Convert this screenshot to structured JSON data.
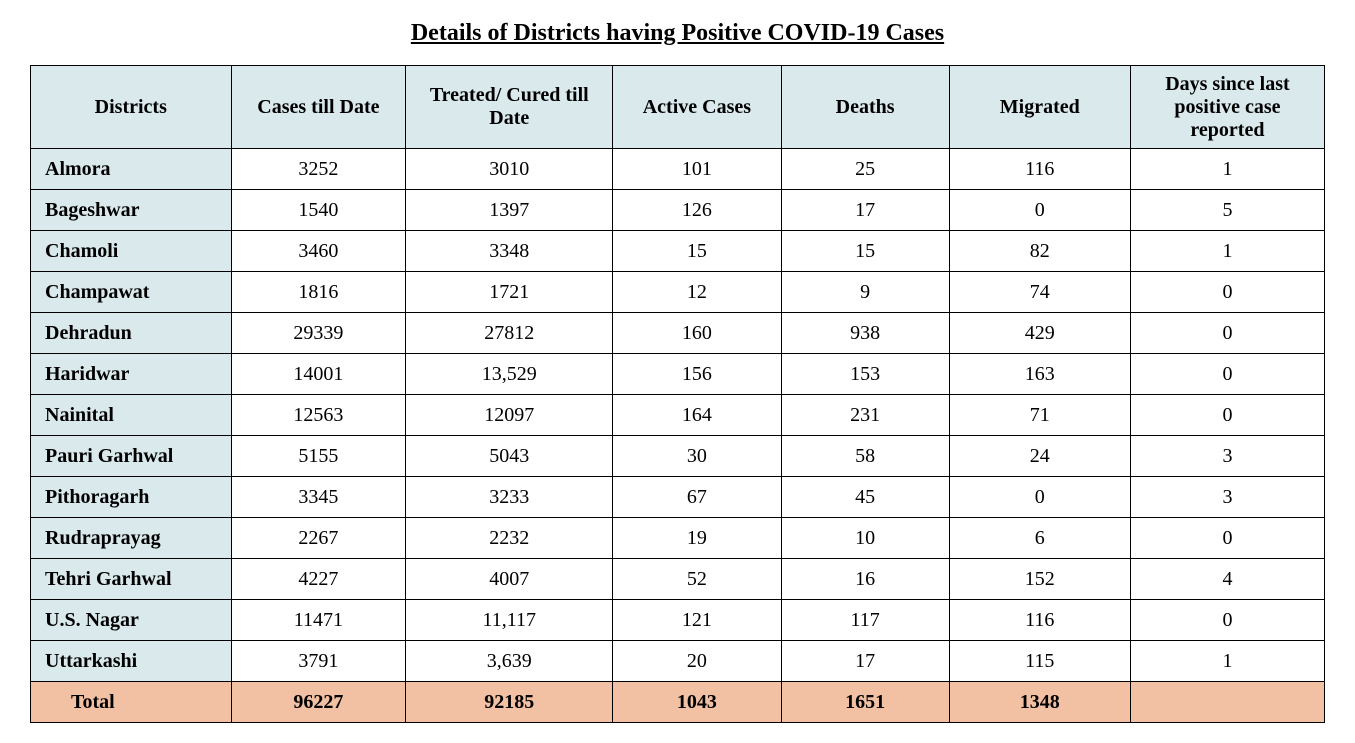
{
  "title": "Details of Districts having Positive COVID-19 Cases",
  "colors": {
    "header_bg": "#d9e9ec",
    "district_bg": "#d9e9ec",
    "total_bg": "#f2c0a2",
    "cell_bg": "#ffffff",
    "border": "#000000",
    "text": "#000000"
  },
  "typography": {
    "title_fontsize": 24,
    "header_fontsize": 20,
    "cell_fontsize": 20,
    "font_family": "Times New Roman"
  },
  "table": {
    "columns": [
      "Districts",
      "Cases till Date",
      "Treated/ Cured till Date",
      "Active Cases",
      "Deaths",
      "Migrated",
      "Days since last positive case reported"
    ],
    "column_widths_pct": [
      15.5,
      13.5,
      16,
      13,
      13,
      14,
      15
    ],
    "rows": [
      {
        "district": "Almora",
        "cases": "3252",
        "cured": "3010",
        "active": "101",
        "deaths": "25",
        "migrated": "116",
        "days": "1"
      },
      {
        "district": "Bageshwar",
        "cases": "1540",
        "cured": "1397",
        "active": "126",
        "deaths": "17",
        "migrated": "0",
        "days": "5"
      },
      {
        "district": "Chamoli",
        "cases": "3460",
        "cured": "3348",
        "active": "15",
        "deaths": "15",
        "migrated": "82",
        "days": "1"
      },
      {
        "district": "Champawat",
        "cases": "1816",
        "cured": "1721",
        "active": "12",
        "deaths": "9",
        "migrated": "74",
        "days": "0"
      },
      {
        "district": "Dehradun",
        "cases": "29339",
        "cured": "27812",
        "active": "160",
        "deaths": "938",
        "migrated": "429",
        "days": "0"
      },
      {
        "district": "Haridwar",
        "cases": "14001",
        "cured": "13,529",
        "active": "156",
        "deaths": "153",
        "migrated": "163",
        "days": "0"
      },
      {
        "district": "Nainital",
        "cases": "12563",
        "cured": "12097",
        "active": "164",
        "deaths": "231",
        "migrated": "71",
        "days": "0"
      },
      {
        "district": "Pauri Garhwal",
        "cases": "5155",
        "cured": "5043",
        "active": "30",
        "deaths": "58",
        "migrated": "24",
        "days": "3"
      },
      {
        "district": "Pithoragarh",
        "cases": "3345",
        "cured": "3233",
        "active": "67",
        "deaths": "45",
        "migrated": "0",
        "days": "3"
      },
      {
        "district": "Rudraprayag",
        "cases": "2267",
        "cured": "2232",
        "active": "19",
        "deaths": "10",
        "migrated": "6",
        "days": "0"
      },
      {
        "district": " Tehri Garhwal",
        "cases": "4227",
        "cured": "4007",
        "active": "52",
        "deaths": "16",
        "migrated": "152",
        "days": "4"
      },
      {
        "district": "U.S. Nagar",
        "cases": "11471",
        "cured": "11,117",
        "active": "121",
        "deaths": "117",
        "migrated": "116",
        "days": "0"
      },
      {
        "district": "Uttarkashi",
        "cases": "3791",
        "cured": "3,639",
        "active": "20",
        "deaths": "17",
        "migrated": "115",
        "days": "1"
      }
    ],
    "total": {
      "label": "Total",
      "cases": "96227",
      "cured": "92185",
      "active": "1043",
      "deaths": "1651",
      "migrated": "1348",
      "days": ""
    }
  }
}
